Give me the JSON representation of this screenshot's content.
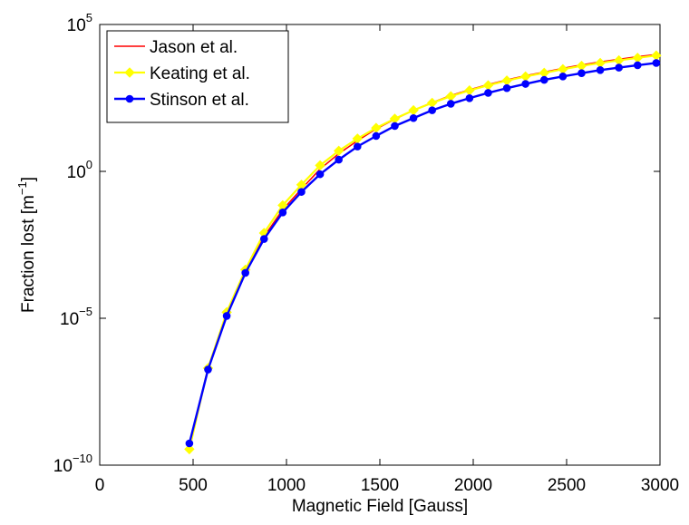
{
  "chart_data": {
    "type": "line",
    "xlabel": "Magnetic Field [Gauss]",
    "ylabel": "Fraction lost [m^-1]",
    "ylabel_main": "Fraction lost [m",
    "ylabel_sup": "−1",
    "ylabel_close": "]",
    "xlim": [
      0,
      3000
    ],
    "ylim": [
      1e-10,
      100000
    ],
    "yscale": "log",
    "grid": false,
    "legend_position": "top-left",
    "x_ticks": [
      0,
      500,
      1000,
      1500,
      2000,
      2500,
      3000
    ],
    "x_tick_labels": [
      "0",
      "500",
      "1000",
      "1500",
      "2000",
      "2500",
      "3000"
    ],
    "y_ticks": [
      {
        "value": 1e-10,
        "base": "10",
        "exp": "−10"
      },
      {
        "value": 1e-05,
        "base": "10",
        "exp": "−5"
      },
      {
        "value": 1,
        "base": "10",
        "exp": "0"
      },
      {
        "value": 100000,
        "base": "10",
        "exp": "5"
      }
    ],
    "x": [
      480,
      580,
      680,
      780,
      880,
      980,
      1080,
      1180,
      1280,
      1380,
      1480,
      1580,
      1680,
      1780,
      1880,
      1980,
      2080,
      2180,
      2280,
      2380,
      2480,
      2580,
      2680,
      2780,
      2880,
      2980
    ],
    "series": [
      {
        "name": "Jason et al.",
        "color": "#ff0000",
        "marker": "none",
        "values": [
          5e-10,
          2e-07,
          1.5e-05,
          0.0004,
          0.006,
          0.05,
          0.25,
          1.2,
          4,
          11,
          28,
          60,
          120,
          220,
          380,
          600,
          900,
          1300,
          1800,
          2400,
          3200,
          4200,
          5300,
          6500,
          8000,
          9500
        ]
      },
      {
        "name": "Keating et al.",
        "color": "#ffff00",
        "marker": "diamond",
        "values": [
          3.5e-10,
          2e-07,
          1.6e-05,
          0.00045,
          0.008,
          0.07,
          0.35,
          1.6,
          5,
          13,
          30,
          62,
          120,
          215,
          360,
          570,
          850,
          1230,
          1700,
          2250,
          3000,
          3900,
          4900,
          6000,
          7300,
          8800
        ]
      },
      {
        "name": "Stinson et al.",
        "color": "#0000ff",
        "marker": "circle",
        "values": [
          5.5e-10,
          1.8e-07,
          1.2e-05,
          0.00035,
          0.005,
          0.04,
          0.2,
          0.8,
          2.5,
          7,
          16,
          35,
          65,
          120,
          200,
          310,
          470,
          680,
          950,
          1300,
          1700,
          2200,
          2800,
          3400,
          4100,
          4900
        ]
      }
    ]
  }
}
